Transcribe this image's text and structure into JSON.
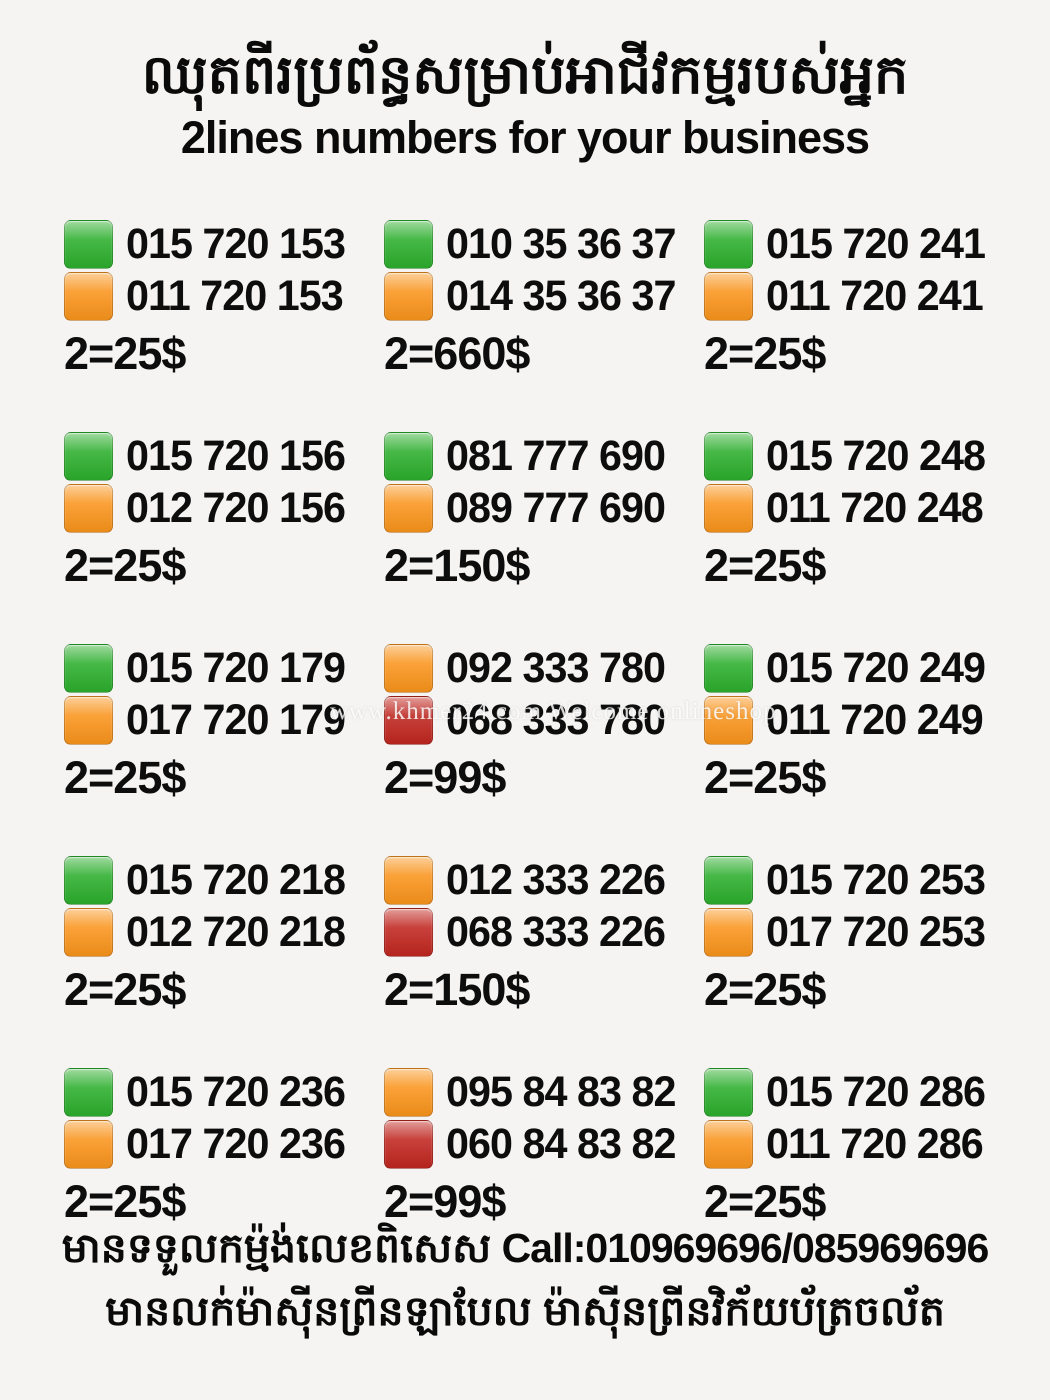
{
  "header": {
    "title_khmer": "ឈុតពីរប្រព័ន្ធសម្រាប់អាជីវកម្មរបស់អ្នក",
    "subtitle": "2lines numbers for your business"
  },
  "colors": {
    "green": "#2cae2c",
    "orange": "#f9941c",
    "red": "#c0261f"
  },
  "watermark": {
    "text": "www.khmer24.com Welcome onlineshop"
  },
  "listings": [
    {
      "line1": {
        "color": "green",
        "number": "015 720 153"
      },
      "line2": {
        "color": "orange",
        "number": "011 720 153"
      },
      "price": "2=25$"
    },
    {
      "line1": {
        "color": "green",
        "number": "010 35 36 37"
      },
      "line2": {
        "color": "orange",
        "number": "014 35 36 37"
      },
      "price": "2=660$"
    },
    {
      "line1": {
        "color": "green",
        "number": "015 720 241"
      },
      "line2": {
        "color": "orange",
        "number": "011 720 241"
      },
      "price": "2=25$"
    },
    {
      "line1": {
        "color": "green",
        "number": "015 720 156"
      },
      "line2": {
        "color": "orange",
        "number": "012 720 156"
      },
      "price": "2=25$"
    },
    {
      "line1": {
        "color": "green",
        "number": "081 777 690"
      },
      "line2": {
        "color": "orange",
        "number": "089 777 690"
      },
      "price": "2=150$"
    },
    {
      "line1": {
        "color": "green",
        "number": "015 720 248"
      },
      "line2": {
        "color": "orange",
        "number": "011 720 248"
      },
      "price": "2=25$"
    },
    {
      "line1": {
        "color": "green",
        "number": "015 720 179"
      },
      "line2": {
        "color": "orange",
        "number": "017 720 179"
      },
      "price": "2=25$"
    },
    {
      "line1": {
        "color": "orange",
        "number": "092 333 780"
      },
      "line2": {
        "color": "red",
        "number": "068 333 780"
      },
      "price": "2=99$"
    },
    {
      "line1": {
        "color": "green",
        "number": "015 720 249"
      },
      "line2": {
        "color": "orange",
        "number": "011 720 249"
      },
      "price": "2=25$"
    },
    {
      "line1": {
        "color": "green",
        "number": "015 720 218"
      },
      "line2": {
        "color": "orange",
        "number": "012 720 218"
      },
      "price": "2=25$"
    },
    {
      "line1": {
        "color": "orange",
        "number": "012 333 226"
      },
      "line2": {
        "color": "red",
        "number": "068 333 226"
      },
      "price": "2=150$"
    },
    {
      "line1": {
        "color": "green",
        "number": "015 720 253"
      },
      "line2": {
        "color": "orange",
        "number": "017 720 253"
      },
      "price": "2=25$"
    },
    {
      "line1": {
        "color": "green",
        "number": "015 720 236"
      },
      "line2": {
        "color": "orange",
        "number": "017 720 236"
      },
      "price": "2=25$"
    },
    {
      "line1": {
        "color": "orange",
        "number": "095 84 83 82"
      },
      "line2": {
        "color": "red",
        "number": "060 84 83 82"
      },
      "price": "2=99$"
    },
    {
      "line1": {
        "color": "green",
        "number": "015 720 286"
      },
      "line2": {
        "color": "orange",
        "number": "011 720 286"
      },
      "price": "2=25$"
    }
  ],
  "footer": {
    "line1_khmer": "មានទទួលកម្ម៉ង់លេខពិសេស",
    "line1_call": " Call:010969696/085969696",
    "line2_khmer": "មានលក់ម៉ាស៊ីនព្រីនឡាបែល ម៉ាស៊ីនព្រីនវិក័យប័ត្រចល័ត"
  }
}
